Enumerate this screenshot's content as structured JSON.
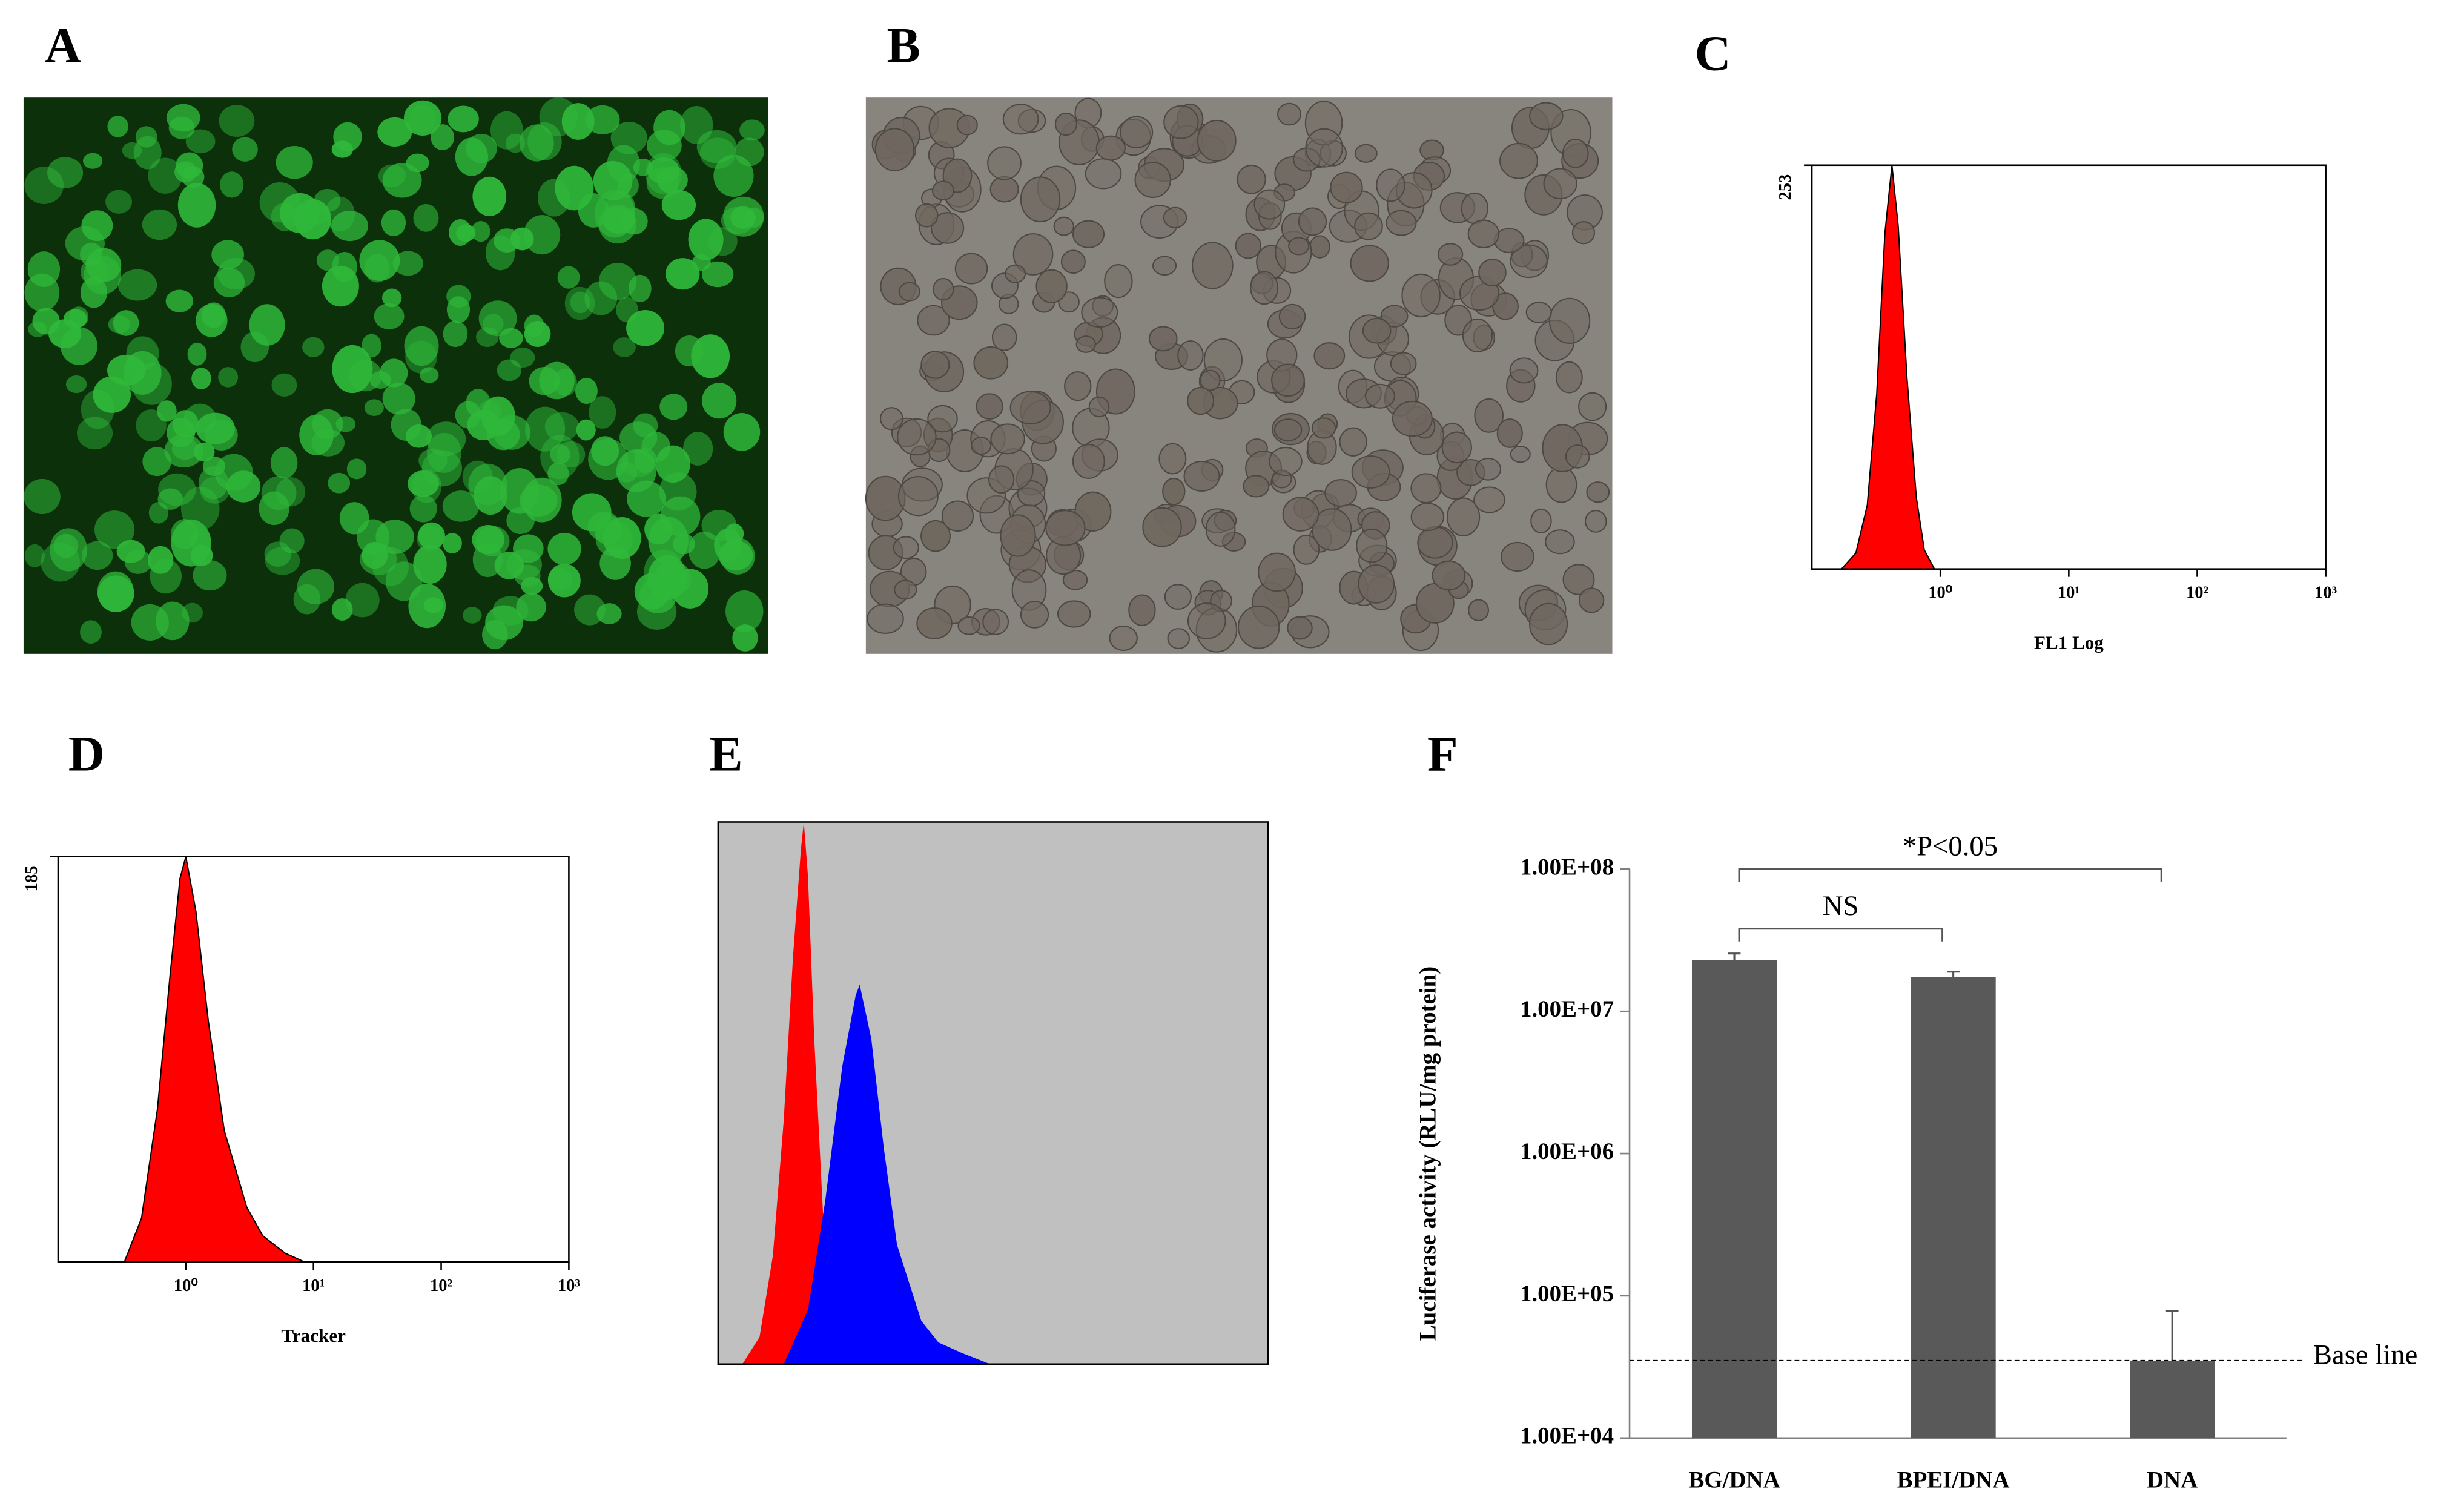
{
  "panel_labels": [
    "A",
    "B",
    "C",
    "D",
    "E",
    "F"
  ],
  "chart_data": [
    {
      "type": "area",
      "xlabel": "FL1 Log",
      "xscale": "log",
      "xlim": [
        0.1,
        1000
      ],
      "xticks": [
        {
          "value": 1,
          "label": "10⁰"
        },
        {
          "value": 10,
          "label": "10¹"
        },
        {
          "value": 100,
          "label": "10²"
        },
        {
          "value": 1000,
          "label": "10³"
        }
      ],
      "ylim": [
        0,
        253
      ],
      "yticks": [
        253
      ],
      "series": [
        {
          "color": "#ff0000",
          "x": [
            0.17,
            0.22,
            0.27,
            0.32,
            0.37,
            0.42,
            0.47,
            0.55,
            0.65,
            0.75,
            0.9
          ],
          "values": [
            0,
            10,
            40,
            110,
            210,
            253,
            215,
            120,
            45,
            12,
            0
          ]
        }
      ]
    },
    {
      "type": "area",
      "xlabel": "Tracker",
      "xscale": "log",
      "xlim": [
        0.1,
        1000
      ],
      "xticks": [
        {
          "value": 1,
          "label": "10⁰"
        },
        {
          "value": 10,
          "label": "10¹"
        },
        {
          "value": 100,
          "label": "10²"
        },
        {
          "value": 1000,
          "label": "10³"
        }
      ],
      "ylim": [
        0,
        185
      ],
      "yticks": [
        185
      ],
      "series": [
        {
          "color": "#ff0000",
          "x": [
            0.33,
            0.45,
            0.6,
            0.75,
            0.9,
            1.0,
            1.2,
            1.5,
            2,
            3,
            4,
            6,
            8.5
          ],
          "values": [
            0,
            20,
            70,
            130,
            175,
            185,
            160,
            110,
            60,
            25,
            12,
            4,
            0
          ]
        }
      ]
    },
    {
      "type": "area",
      "xscale": "log",
      "xlim": [
        0.1,
        1000
      ],
      "ylim": [
        0,
        100
      ],
      "background": "#c0c0c0",
      "series": [
        {
          "color": "#ff0000",
          "x": [
            0.15,
            0.2,
            0.25,
            0.3,
            0.35,
            0.4,
            0.42,
            0.45,
            0.5,
            0.6,
            0.7
          ],
          "values": [
            0,
            5,
            20,
            45,
            75,
            95,
            100,
            90,
            60,
            20,
            0
          ]
        },
        {
          "color": "#0000ff",
          "x": [
            0.3,
            0.45,
            0.6,
            0.8,
            1.0,
            1.07,
            1.3,
            1.6,
            2,
            3,
            4,
            6,
            9.5
          ],
          "values": [
            0,
            10,
            30,
            55,
            68,
            70,
            60,
            40,
            22,
            8,
            4,
            2,
            0
          ]
        }
      ]
    },
    {
      "type": "bar",
      "ylabel": "Luciferase activity (RLU/mg protein)",
      "yscale": "log",
      "ylim": [
        10000,
        100000000
      ],
      "yticks": [
        {
          "value": 10000,
          "label": "1.00E+04"
        },
        {
          "value": 100000,
          "label": "1.00E+05"
        },
        {
          "value": 1000000,
          "label": "1.00E+06"
        },
        {
          "value": 10000000,
          "label": "1.00E+07"
        },
        {
          "value": 100000000,
          "label": "1.00E+08"
        }
      ],
      "categories": [
        "BG/DNA",
        "BPEI/DNA",
        "DNA"
      ],
      "values": [
        23000000,
        17500000,
        35000
      ],
      "errors": [
        2500000,
        1500000,
        43500
      ],
      "color": "#595959",
      "baseline": {
        "value": 35000,
        "label": "Base line"
      },
      "annotations": [
        {
          "text": "NS",
          "from": "BG/DNA",
          "to": "BPEI/DNA"
        },
        {
          "text": "*P<0.05",
          "from": "BG/DNA",
          "to": "DNA"
        }
      ]
    }
  ]
}
